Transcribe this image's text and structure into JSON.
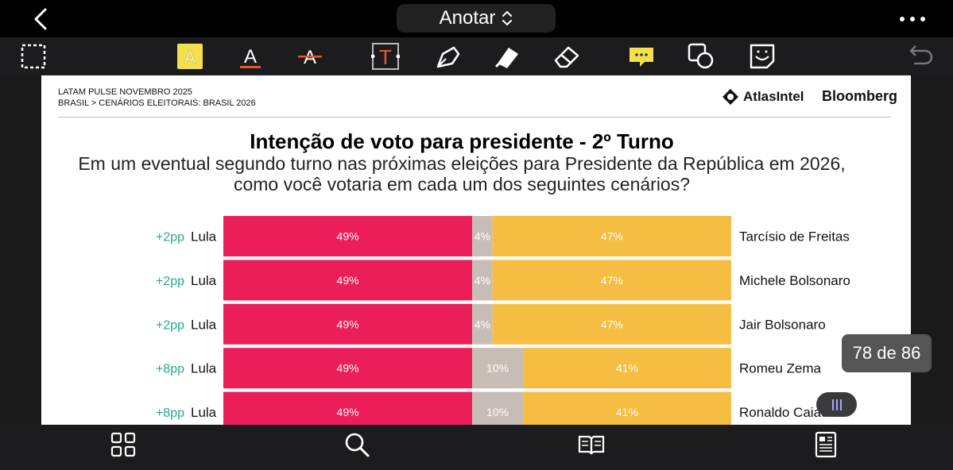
{
  "app": {
    "title": "Anotar"
  },
  "toolbar": {
    "tools": [
      "select-tool",
      "highlight-text-tool",
      "underline-text-tool",
      "strikethrough-tool",
      "text-box-tool",
      "pen-tool",
      "highlighter-tool",
      "eraser-tool",
      "comment-tool",
      "shape-tool",
      "sticker-tool",
      "undo-tool"
    ]
  },
  "document": {
    "header_line1": "LATAM PULSE NOVEMBRO 2025",
    "header_line2": "BRASIL > CENÁRIOS ELEITORAIS: BRASIL 2026",
    "logo_atlas": "AtlasIntel",
    "logo_bloomberg": "Bloomberg",
    "chart_title": "Intenção de voto para presidente - 2º Turno",
    "chart_subtitle_line1": "Em um eventual segundo turno nas próximas eleições para Presidente da República em 2026,",
    "chart_subtitle_line2": "como você votaria em cada um dos seguintes cenários?"
  },
  "colors": {
    "left": "#ec1e5a",
    "middle": "#c8bdb6",
    "right": "#f5bd42",
    "change": "#27a88a"
  },
  "chart_data": {
    "type": "bar",
    "stacked": true,
    "categories": [
      "Lula vs Tarcísio de Freitas",
      "Lula vs Michele Bolsonaro",
      "Lula vs Jair Bolsonaro",
      "Lula vs Romeu Zema",
      "Lula vs Ronaldo Caiado"
    ],
    "rows": [
      {
        "change": "+2pp",
        "left": "Lula",
        "right": "Tarcísio de Freitas",
        "values": [
          49,
          4,
          47
        ],
        "labels": [
          "49%",
          "4%",
          "47%"
        ]
      },
      {
        "change": "+2pp",
        "left": "Lula",
        "right": "Michele Bolsonaro",
        "values": [
          49,
          4,
          47
        ],
        "labels": [
          "49%",
          "4%",
          "47%"
        ]
      },
      {
        "change": "+2pp",
        "left": "Lula",
        "right": "Jair Bolsonaro",
        "values": [
          49,
          4,
          47
        ],
        "labels": [
          "49%",
          "4%",
          "47%"
        ]
      },
      {
        "change": "+8pp",
        "left": "Lula",
        "right": "Romeu Zema",
        "values": [
          49,
          10,
          41
        ],
        "labels": [
          "49%",
          "10%",
          "41%"
        ]
      },
      {
        "change": "+8pp",
        "left": "Lula",
        "right": "Ronaldo Caiado",
        "values": [
          49,
          10,
          41
        ],
        "labels": [
          "49%",
          "10%",
          "41%"
        ]
      }
    ],
    "xlim": [
      0,
      100
    ]
  },
  "page_indicator": "78 de 86",
  "bottom_nav": [
    "thumbnails-grid",
    "search",
    "reader",
    "document-view"
  ]
}
